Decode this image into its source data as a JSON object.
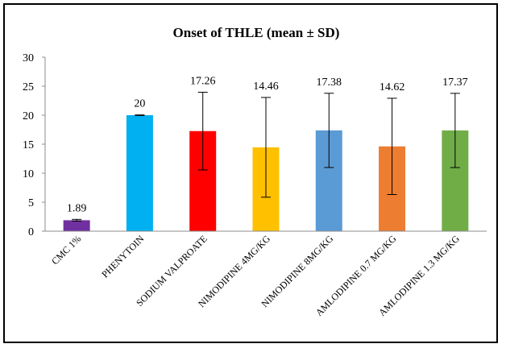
{
  "chart_data": {
    "type": "bar",
    "title": "Onset of THLE (mean ± SD)",
    "xlabel": "",
    "ylabel": "",
    "ylim": [
      0,
      30
    ],
    "yticks": [
      0,
      5,
      10,
      15,
      20,
      25,
      30
    ],
    "grid": false,
    "legend": "none",
    "categories": [
      "CMC 1%",
      "PHENYTOIN",
      "SODIUM VALPROATE",
      "NIMODIPINE 4MG/KG",
      "NIMODIPINE 8MG/KG",
      "AMLODIPINE 0.7 MG/KG",
      "AMLODIPINE 1.3 MG/KG"
    ],
    "values": [
      1.89,
      20,
      17.26,
      14.46,
      17.38,
      14.62,
      17.37
    ],
    "value_labels": [
      "1.89",
      "20",
      "17.26",
      "14.46",
      "17.38",
      "14.62",
      "17.37"
    ],
    "error": [
      0.15,
      0.05,
      6.7,
      8.6,
      6.4,
      8.3,
      6.4
    ],
    "colors": [
      "#7030A0",
      "#00B0F0",
      "#FF0000",
      "#FFC000",
      "#5B9BD5",
      "#ED7D31",
      "#70AD47"
    ]
  }
}
